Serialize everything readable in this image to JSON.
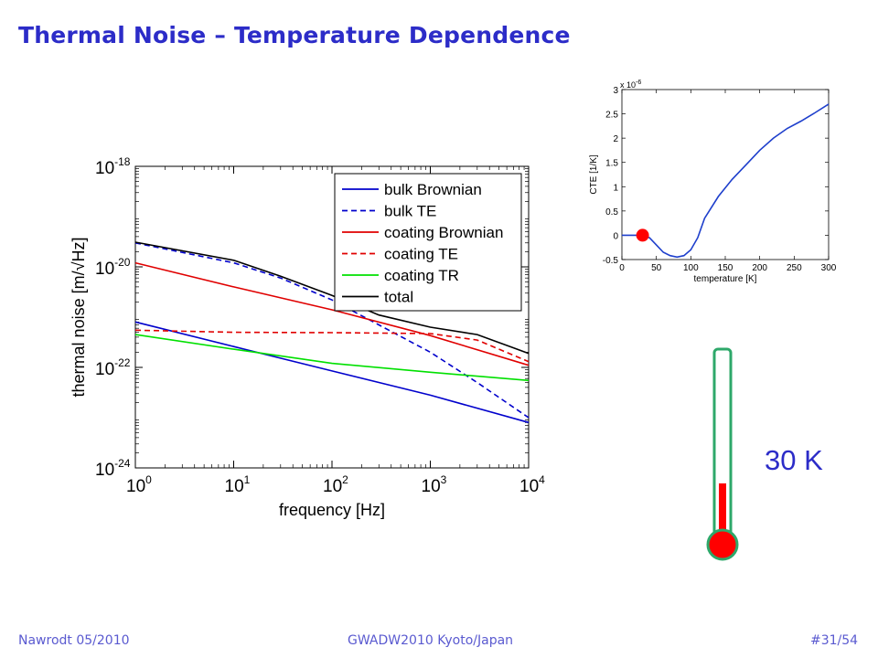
{
  "slide": {
    "title": "Thermal Noise – Temperature Dependence",
    "temperature_label": "30 K",
    "thermometer_fill_fraction": 0.27
  },
  "footer": {
    "left": "Nawrodt 05/2010",
    "center": "GWADW2010 Kyoto/Japan",
    "right": "#31/54"
  },
  "colors": {
    "title": "#2c2cc8",
    "bulk": "#0000cc",
    "coating": "#e00000",
    "tr": "#00e000",
    "total": "#000000",
    "thermometer_outline": "#2ea86a",
    "thermometer_fill": "#ff0000"
  },
  "chart_data": [
    {
      "type": "line",
      "xlabel": "frequency [Hz]",
      "ylabel": "thermal noise [m/√Hz]",
      "x_scale": "log",
      "y_scale": "log",
      "xlim": [
        1,
        10000
      ],
      "ylim": [
        1e-24,
        1e-18
      ],
      "x_ticks": [
        {
          "value": 1,
          "base": "10",
          "exp": "0"
        },
        {
          "value": 10,
          "base": "10",
          "exp": "1"
        },
        {
          "value": 100,
          "base": "10",
          "exp": "2"
        },
        {
          "value": 1000,
          "base": "10",
          "exp": "3"
        },
        {
          "value": 10000,
          "base": "10",
          "exp": "4"
        }
      ],
      "y_ticks": [
        {
          "value": 1e-18,
          "base": "10",
          "exp": "-18"
        },
        {
          "value": 1e-20,
          "base": "10",
          "exp": "-20"
        },
        {
          "value": 1e-22,
          "base": "10",
          "exp": "-22"
        },
        {
          "value": 1e-24,
          "base": "10",
          "exp": "-24"
        }
      ],
      "grid": false,
      "legend_position": "top-right",
      "series": [
        {
          "name": "bulk Brownian",
          "color": "#0000cc",
          "dash": false,
          "x": [
            1,
            10,
            100,
            1000,
            10000
          ],
          "y": [
            8e-22,
            2.6e-22,
            8.5e-23,
            2.8e-23,
            8e-24
          ]
        },
        {
          "name": "bulk TE",
          "color": "#0000cc",
          "dash": true,
          "x": [
            1,
            10,
            30,
            100,
            300,
            1000,
            3000,
            10000
          ],
          "y": [
            3e-20,
            1.2e-20,
            6e-21,
            2.2e-21,
            7e-22,
            2e-22,
            5e-23,
            1e-23
          ]
        },
        {
          "name": "coating Brownian",
          "color": "#e00000",
          "dash": false,
          "x": [
            1,
            10,
            100,
            1000,
            10000
          ],
          "y": [
            1.2e-20,
            4e-21,
            1.4e-21,
            4.3e-22,
            1.1e-22
          ]
        },
        {
          "name": "coating TE",
          "color": "#e00000",
          "dash": true,
          "x": [
            1,
            10,
            100,
            1000,
            3000,
            10000
          ],
          "y": [
            5.5e-22,
            5e-22,
            4.9e-22,
            4.7e-22,
            3.5e-22,
            1.3e-22
          ]
        },
        {
          "name": "coating TR",
          "color": "#00e000",
          "dash": false,
          "x": [
            1,
            10,
            100,
            1000,
            10000
          ],
          "y": [
            4.5e-22,
            2.3e-22,
            1.2e-22,
            8e-23,
            5.5e-23
          ]
        },
        {
          "name": "total",
          "color": "#000000",
          "dash": false,
          "x": [
            1,
            10,
            30,
            100,
            300,
            1000,
            3000,
            10000
          ],
          "y": [
            3.1e-20,
            1.35e-20,
            6.5e-21,
            2.7e-21,
            1.1e-21,
            6.3e-22,
            4.5e-22,
            1.9e-22
          ]
        }
      ]
    },
    {
      "type": "line",
      "xlabel": "temperature [K]",
      "ylabel": "CTE [1/K]",
      "y_multiplier": "x 10",
      "y_multiplier_exp": "-6",
      "xlim": [
        0,
        300
      ],
      "ylim": [
        -0.5,
        3
      ],
      "x_ticks": [
        "0",
        "50",
        "100",
        "150",
        "200",
        "250",
        "300"
      ],
      "y_ticks": [
        "-0.5",
        "0",
        "0.5",
        "1",
        "1.5",
        "2",
        "2.5",
        "3"
      ],
      "grid": false,
      "series": [
        {
          "color": "#1e3fcc",
          "x": [
            0,
            20,
            30,
            40,
            50,
            60,
            70,
            80,
            90,
            100,
            110,
            120,
            140,
            160,
            180,
            200,
            220,
            240,
            260,
            280,
            300
          ],
          "y": [
            0,
            0,
            0,
            -0.05,
            -0.2,
            -0.35,
            -0.42,
            -0.45,
            -0.42,
            -0.3,
            -0.05,
            0.35,
            0.8,
            1.15,
            1.45,
            1.75,
            2.0,
            2.2,
            2.35,
            2.52,
            2.7
          ]
        }
      ],
      "marker": {
        "x": 30,
        "y": 0,
        "color": "#ff0000"
      }
    }
  ]
}
